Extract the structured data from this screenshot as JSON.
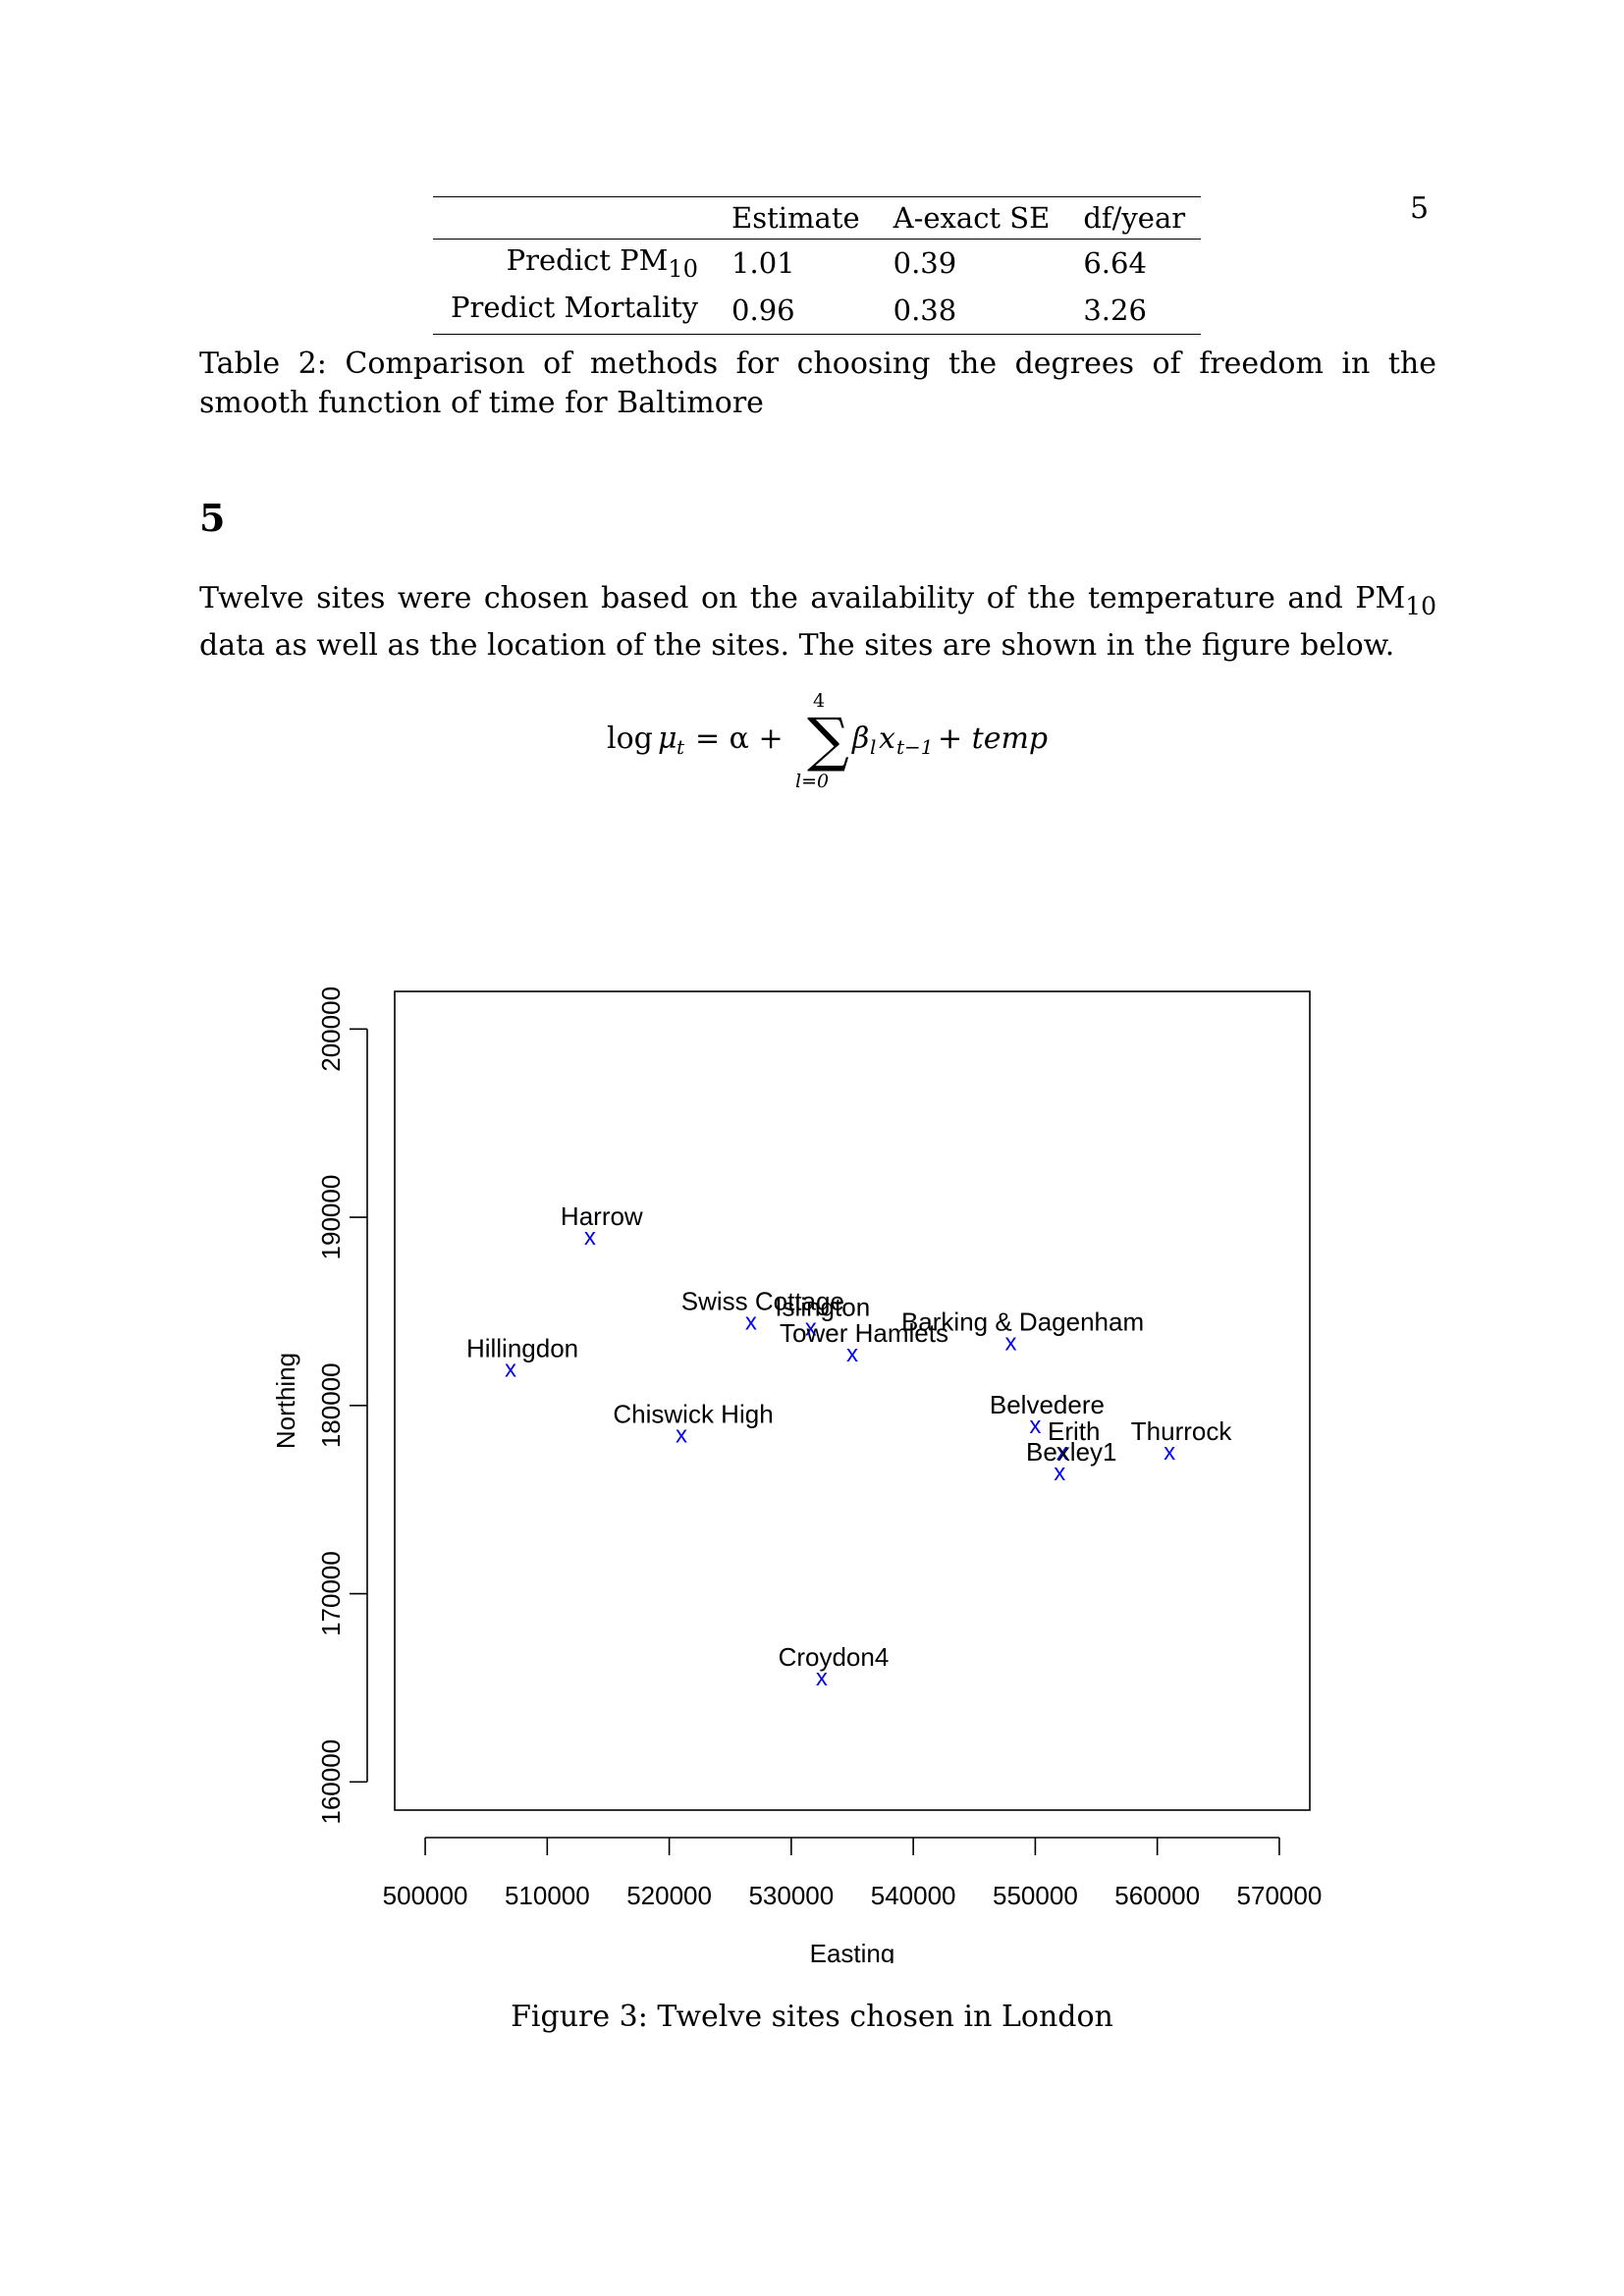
{
  "page_number": "5",
  "table": {
    "headers": [
      "",
      "Estimate",
      "A-exact SE",
      "df/year"
    ],
    "rows": [
      {
        "label": "Predict PM",
        "label_sub": "10",
        "estimate": "1.01",
        "se": "0.39",
        "df": "6.64"
      },
      {
        "label": "Predict Mortality",
        "label_sub": "",
        "estimate": "0.96",
        "se": "0.38",
        "df": "3.26"
      }
    ]
  },
  "table_caption": "Table 2: Comparison of methods for choosing the degrees of freedom in the smooth function of time for Baltimore",
  "section_heading": "5",
  "paragraph": {
    "part1": "Twelve sites were chosen based on the availability of the temperature and PM",
    "sub": "10",
    "part2": " data as well as the location of the sites. The sites are shown in the figure below."
  },
  "equation": {
    "lhs_log": "log",
    "lhs_mu": "μ",
    "lhs_sub": "t",
    "alpha": "= α +",
    "sum_upper": "4",
    "sum_lower": "l=0",
    "beta": "β",
    "beta_sub": "l",
    "x": "x",
    "x_sub": "t−1",
    "tail": "+ temp"
  },
  "figure_caption": "Figure 3: Twelve sites chosen in London",
  "chart_data": {
    "type": "scatter",
    "xlabel": "Easting",
    "ylabel": "Northing",
    "xlim": [
      497500,
      572500
    ],
    "ylim": [
      158500,
      202000
    ],
    "xticks": [
      500000,
      510000,
      520000,
      530000,
      540000,
      550000,
      560000,
      570000
    ],
    "yticks": [
      160000,
      170000,
      180000,
      190000,
      200000
    ],
    "marker": "x",
    "marker_color": "#0000ff",
    "points": [
      {
        "name": "Harrow",
        "x": 513500,
        "y": 189000
      },
      {
        "name": "Swiss Cottage",
        "x": 526700,
        "y": 184500
      },
      {
        "name": "Islington",
        "x": 531600,
        "y": 184200
      },
      {
        "name": "Tower Hamlets",
        "x": 535000,
        "y": 182800
      },
      {
        "name": "Barking & Dagenham",
        "x": 548000,
        "y": 183400
      },
      {
        "name": "Hillingdon",
        "x": 507000,
        "y": 182000
      },
      {
        "name": "Chiswick High",
        "x": 521000,
        "y": 178500
      },
      {
        "name": "Belvedere",
        "x": 550000,
        "y": 179000
      },
      {
        "name": "Erith",
        "x": 552200,
        "y": 177600
      },
      {
        "name": "Bexley1",
        "x": 552000,
        "y": 176500
      },
      {
        "name": "Thurrock",
        "x": 561000,
        "y": 177600
      },
      {
        "name": "Croydon4",
        "x": 532500,
        "y": 165600
      }
    ]
  }
}
